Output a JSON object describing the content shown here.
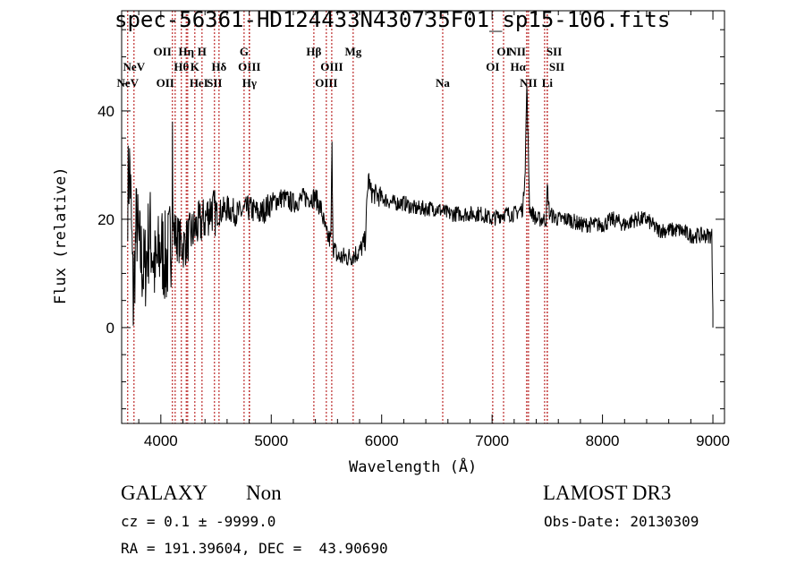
{
  "chart_data": {
    "type": "line",
    "title": "spec-56361-HD124433N430735F01_sp15-106.fits",
    "xlabel": "Wavelength (Å)",
    "ylabel": "Flux (relative)",
    "xlim": [
      3645,
      9105
    ],
    "ylim": [
      -17.7,
      58.5
    ],
    "xticks": [
      4000,
      5000,
      6000,
      7000,
      8000,
      9000
    ],
    "xtick_labels": [
      "4000",
      "5000",
      "6000",
      "7000",
      "8000",
      "9000"
    ],
    "yticks": [
      0,
      20,
      40
    ],
    "ytick_labels": [
      "0",
      "20",
      "40"
    ],
    "grid": false,
    "line_color": "#000000",
    "marker_color": "#b00000",
    "spectrum": {
      "x": [
        3700,
        3720,
        3750,
        3780,
        3800,
        3850,
        3900,
        3950,
        4000,
        4050,
        4100,
        4105,
        4110,
        4200,
        4300,
        4400,
        4450,
        4500,
        4600,
        4700,
        4800,
        4900,
        5000,
        5100,
        5200,
        5300,
        5400,
        5450,
        5500,
        5540,
        5550,
        5560,
        5600,
        5700,
        5800,
        5850,
        5880,
        5900,
        6000,
        6100,
        6200,
        6300,
        6400,
        6500,
        6600,
        6700,
        6800,
        6900,
        7000,
        7100,
        7200,
        7280,
        7300,
        7315,
        7325,
        7340,
        7400,
        7450,
        7490,
        7500,
        7520,
        7600,
        7700,
        7800,
        7900,
        8000,
        8100,
        8200,
        8300,
        8400,
        8500,
        8600,
        8700,
        8800,
        8900,
        8980,
        8990,
        9000
      ],
      "y": [
        25,
        30,
        5,
        20,
        15,
        10,
        18,
        10,
        15,
        12,
        17,
        37,
        18,
        15,
        18,
        20,
        22,
        21,
        22,
        21,
        22,
        21,
        23,
        24,
        23,
        24,
        24,
        22,
        17,
        16,
        33,
        15,
        13,
        13,
        14,
        16,
        28,
        25,
        24,
        23,
        23,
        22,
        22,
        22,
        21,
        21,
        21,
        21,
        20,
        21,
        21,
        22,
        30,
        45,
        35,
        22,
        20,
        20,
        20,
        26,
        21,
        20,
        20,
        19,
        19,
        19,
        20,
        19,
        20,
        20,
        18,
        18,
        18,
        17,
        17,
        17,
        17,
        3
      ]
    },
    "line_markers": [
      {
        "label": "NeV",
        "wavelength": 3700,
        "row": 2
      },
      {
        "label": "NeV",
        "wavelength": 3757,
        "row": 1
      },
      {
        "label": "OII",
        "wavelength": 4105,
        "row": 0
      },
      {
        "label": "OII",
        "wavelength": 4130,
        "row": 2
      },
      {
        "label": "Hθ",
        "wavelength": 4186,
        "row": 1
      },
      {
        "label": "HeI",
        "wavelength": 4243,
        "row": 2
      },
      {
        "label": "Hη",
        "wavelength": 4230,
        "row": 0
      },
      {
        "label": "K",
        "wavelength": 4308,
        "row": 1
      },
      {
        "label": "H",
        "wavelength": 4373,
        "row": 0
      },
      {
        "label": "SII",
        "wavelength": 4486,
        "row": 2
      },
      {
        "label": "Hδ",
        "wavelength": 4527,
        "row": 1
      },
      {
        "label": "G",
        "wavelength": 4754,
        "row": 0
      },
      {
        "label": "OIII",
        "wavelength": 4802,
        "row": 1
      },
      {
        "label": "Hγ",
        "wavelength": 4802,
        "row": 2
      },
      {
        "label": "Hβ",
        "wavelength": 5386,
        "row": 0
      },
      {
        "label": "OIII",
        "wavelength": 5499,
        "row": 2
      },
      {
        "label": "OIII",
        "wavelength": 5548,
        "row": 1
      },
      {
        "label": "Mg",
        "wavelength": 5742,
        "row": 0
      },
      {
        "label": "Na",
        "wavelength": 6553,
        "row": 2
      },
      {
        "label": "OI",
        "wavelength": 7006,
        "row": 1
      },
      {
        "label": "OI",
        "wavelength": 7104,
        "row": 0
      },
      {
        "label": "NII",
        "wavelength": 7314,
        "row": 0
      },
      {
        "label": "Hα",
        "wavelength": 7314,
        "row": 1
      },
      {
        "label": "NII",
        "wavelength": 7330,
        "row": 2
      },
      {
        "label": "SII",
        "wavelength": 7476,
        "row": 0
      },
      {
        "label": "SII",
        "wavelength": 7500,
        "row": 1
      },
      {
        "label": "Li",
        "wavelength": 7500,
        "row": 2
      }
    ]
  },
  "info": {
    "class": "GALAXY",
    "subclass": "Non",
    "survey": "LAMOST DR3",
    "cz": "cz = 0.1 ± -9999.0",
    "obs_date": "Obs-Date: 20130309",
    "radec": "RA = 191.39604, DEC =  43.90690"
  }
}
